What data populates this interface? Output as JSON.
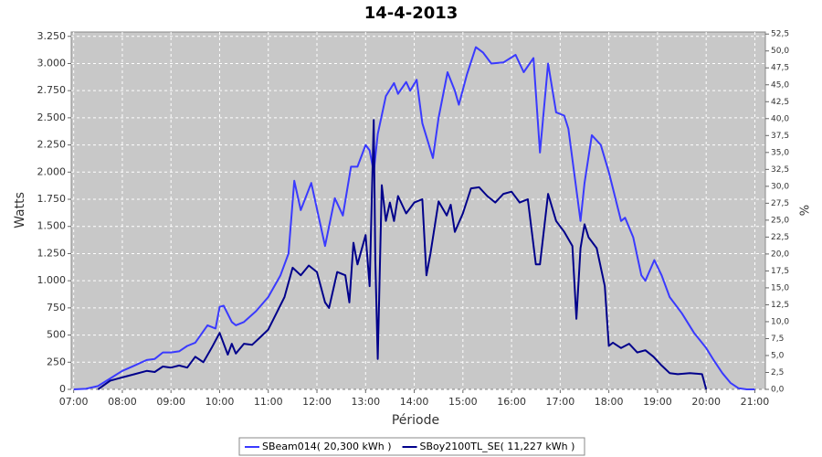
{
  "chart_data": {
    "type": "line",
    "title": "14-4-2013",
    "ylabel": "Watts",
    "y2label": "%",
    "xlabel": "Période",
    "grid": true,
    "legend": "bottom",
    "xlim": [
      "06:57",
      "21:13"
    ],
    "xticks": [
      "07:00",
      "08:00",
      "09:00",
      "10:00",
      "11:00",
      "12:00",
      "13:00",
      "14:00",
      "15:00",
      "16:00",
      "17:00",
      "18:00",
      "19:00",
      "20:00",
      "21:00"
    ],
    "ylim": [
      0,
      3290
    ],
    "yticks": [
      0,
      250,
      500,
      750,
      {
        "value": 1000,
        "label": "1.000"
      },
      {
        "value": 1250,
        "label": "1.250"
      },
      {
        "value": 1500,
        "label": "1.500"
      },
      {
        "value": 1750,
        "label": "1.750"
      },
      {
        "value": 2000,
        "label": "2.000"
      },
      {
        "value": 2250,
        "label": "2.250"
      },
      {
        "value": 2500,
        "label": "2.500"
      },
      {
        "value": 2750,
        "label": "2.750"
      },
      {
        "value": 3000,
        "label": "3.000"
      },
      {
        "value": 3250,
        "label": "3.250"
      }
    ],
    "y2lim": [
      0,
      52.8
    ],
    "y2ticks": [
      {
        "value": 0,
        "label": "0,0"
      },
      {
        "value": 2.5,
        "label": "2,5"
      },
      {
        "value": 5,
        "label": "5,0"
      },
      {
        "value": 7.5,
        "label": "7,5"
      },
      {
        "value": 10,
        "label": "10,0"
      },
      {
        "value": 12.5,
        "label": "12,5"
      },
      {
        "value": 15,
        "label": "15,0"
      },
      {
        "value": 17.5,
        "label": "17,5"
      },
      {
        "value": 20,
        "label": "20,0"
      },
      {
        "value": 22.5,
        "label": "22,5"
      },
      {
        "value": 25,
        "label": "25,0"
      },
      {
        "value": 27.5,
        "label": "27,5"
      },
      {
        "value": 30,
        "label": "30,0"
      },
      {
        "value": 32.5,
        "label": "32,5"
      },
      {
        "value": 35,
        "label": "35,0"
      },
      {
        "value": 37.5,
        "label": "37,5"
      },
      {
        "value": 40,
        "label": "40,0"
      },
      {
        "value": 42.5,
        "label": "42,5"
      },
      {
        "value": 45,
        "label": "45,0"
      },
      {
        "value": 47.5,
        "label": "47,5"
      },
      {
        "value": 50,
        "label": "50,0"
      },
      {
        "value": 52.5,
        "label": "52,5"
      }
    ],
    "series": [
      {
        "name": "SBeam014( 20,300 kWh )",
        "color": "#3a3aff",
        "x": [
          "07:00",
          "07:15",
          "07:30",
          "07:45",
          "08:00",
          "08:15",
          "08:30",
          "08:40",
          "08:50",
          "09:00",
          "09:10",
          "09:20",
          "09:30",
          "09:45",
          "09:55",
          "10:00",
          "10:05",
          "10:15",
          "10:20",
          "10:30",
          "10:45",
          "11:00",
          "11:15",
          "11:25",
          "11:32",
          "11:40",
          "11:53",
          "12:10",
          "12:22",
          "12:32",
          "12:42",
          "12:50",
          "13:00",
          "13:05",
          "13:10",
          "13:15",
          "13:25",
          "13:35",
          "13:40",
          "13:50",
          "13:55",
          "14:03",
          "14:10",
          "14:23",
          "14:30",
          "14:41",
          "14:50",
          "14:55",
          "15:05",
          "15:16",
          "15:25",
          "15:35",
          "15:50",
          "16:05",
          "16:15",
          "16:27",
          "16:35",
          "16:45",
          "16:55",
          "17:05",
          "17:10",
          "17:25",
          "17:30",
          "17:39",
          "17:50",
          "18:00",
          "18:15",
          "18:20",
          "18:30",
          "18:40",
          "18:45",
          "18:56",
          "19:05",
          "19:15",
          "19:30",
          "19:45",
          "20:00",
          "20:10",
          "20:20",
          "20:30",
          "20:40",
          "20:50",
          "21:00"
        ],
        "values": [
          0,
          5,
          30,
          100,
          170,
          220,
          270,
          280,
          340,
          340,
          350,
          400,
          430,
          590,
          560,
          760,
          770,
          620,
          590,
          620,
          720,
          850,
          1050,
          1250,
          1920,
          1650,
          1900,
          1320,
          1760,
          1600,
          2050,
          2050,
          2250,
          2200,
          2000,
          2350,
          2700,
          2820,
          2720,
          2830,
          2750,
          2850,
          2450,
          2130,
          2500,
          2920,
          2750,
          2620,
          2900,
          3150,
          3100,
          3000,
          3010,
          3080,
          2920,
          3050,
          2180,
          3000,
          2550,
          2520,
          2400,
          1550,
          1900,
          2340,
          2250,
          2000,
          1550,
          1580,
          1400,
          1050,
          1000,
          1190,
          1050,
          850,
          700,
          520,
          380,
          260,
          150,
          60,
          10,
          0,
          0
        ]
      },
      {
        "name": "SBoy2100TL_SE( 11,227 kWh )",
        "color": "#00008b",
        "x": [
          "07:30",
          "07:45",
          "08:00",
          "08:15",
          "08:30",
          "08:40",
          "08:50",
          "09:00",
          "09:10",
          "09:20",
          "09:30",
          "09:40",
          "09:50",
          "10:00",
          "10:10",
          "10:15",
          "10:20",
          "10:30",
          "10:40",
          "10:50",
          "11:00",
          "11:10",
          "11:20",
          "11:30",
          "11:40",
          "11:50",
          "12:00",
          "12:10",
          "12:15",
          "12:25",
          "12:35",
          "12:40",
          "12:45",
          "12:50",
          "13:00",
          "13:05",
          "13:10",
          "13:12",
          "13:15",
          "13:20",
          "13:25",
          "13:30",
          "13:35",
          "13:40",
          "13:50",
          "14:00",
          "14:10",
          "14:15",
          "14:20",
          "14:30",
          "14:40",
          "14:45",
          "14:50",
          "15:00",
          "15:10",
          "15:20",
          "15:30",
          "15:40",
          "15:50",
          "16:00",
          "16:10",
          "16:20",
          "16:30",
          "16:35",
          "16:45",
          "16:55",
          "17:05",
          "17:15",
          "17:20",
          "17:25",
          "17:30",
          "17:35",
          "17:45",
          "17:55",
          "18:00",
          "18:05",
          "18:15",
          "18:25",
          "18:35",
          "18:45",
          "18:55",
          "19:05",
          "19:15",
          "19:25",
          "19:40",
          "19:55",
          "20:00"
        ],
        "values": [
          0,
          80,
          110,
          140,
          170,
          160,
          210,
          200,
          220,
          200,
          300,
          250,
          380,
          520,
          320,
          420,
          330,
          420,
          410,
          480,
          550,
          700,
          850,
          1120,
          1050,
          1140,
          1080,
          800,
          750,
          1080,
          1050,
          800,
          1350,
          1150,
          1420,
          950,
          2480,
          1200,
          280,
          1880,
          1550,
          1720,
          1550,
          1780,
          1620,
          1720,
          1750,
          1050,
          1250,
          1730,
          1600,
          1700,
          1450,
          1620,
          1850,
          1860,
          1780,
          1720,
          1800,
          1820,
          1720,
          1750,
          1150,
          1150,
          1800,
          1550,
          1450,
          1320,
          650,
          1300,
          1520,
          1400,
          1300,
          950,
          400,
          430,
          380,
          420,
          340,
          360,
          300,
          220,
          150,
          140,
          150,
          140,
          0
        ]
      }
    ]
  }
}
